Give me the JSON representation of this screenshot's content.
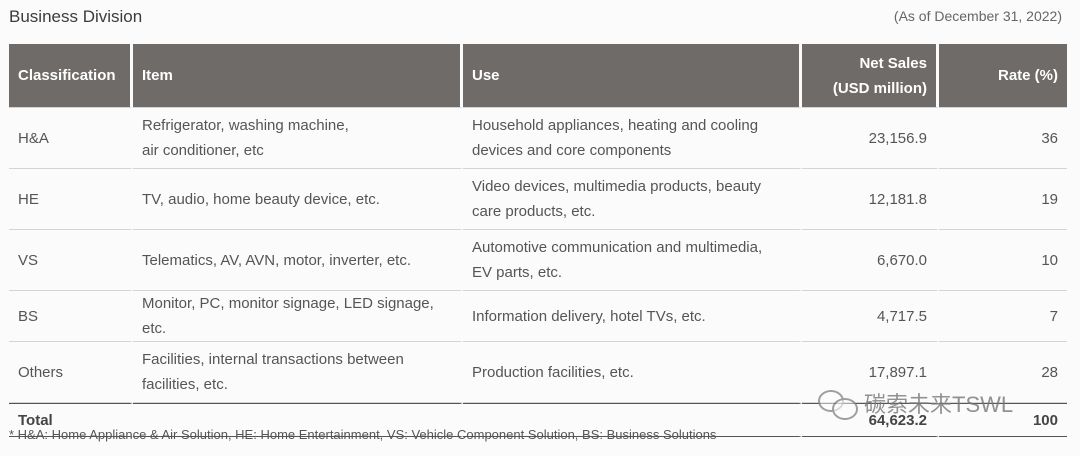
{
  "title": "Business Division",
  "as_of": "(As of December 31, 2022)",
  "table": {
    "headers": {
      "classification": "Classification",
      "item": "Item",
      "use": "Use",
      "net_sales_line1": "Net Sales",
      "net_sales_line2": "(USD million)",
      "rate": "Rate (%)"
    },
    "rows": [
      {
        "classification": "H&A",
        "item_line1": "Refrigerator, washing machine,",
        "item_line2": "air conditioner, etc",
        "use_line1": "Household appliances, heating and cooling",
        "use_line2": "devices and core components",
        "net_sales": "23,156.9",
        "rate": "36"
      },
      {
        "classification": "HE",
        "item_line1": "TV, audio, home beauty device, etc.",
        "item_line2": "",
        "use_line1": "Video devices, multimedia products, beauty",
        "use_line2": "care products, etc.",
        "net_sales": "12,181.8",
        "rate": "19"
      },
      {
        "classification": "VS",
        "item_line1": "Telematics, AV, AVN, motor, inverter, etc.",
        "item_line2": "",
        "use_line1": "Automotive communication and multimedia,",
        "use_line2": "EV parts, etc.",
        "net_sales": "6,670.0",
        "rate": "10"
      },
      {
        "classification": "BS",
        "item_line1": "Monitor, PC, monitor signage, LED signage, etc.",
        "item_line2": "",
        "use_line1": "Information delivery, hotel TVs, etc.",
        "use_line2": "",
        "net_sales": "4,717.5",
        "rate": "7"
      },
      {
        "classification": "Others",
        "item_line1": "Facilities, internal transactions between",
        "item_line2": "facilities, etc.",
        "use_line1": "Production facilities, etc.",
        "use_line2": "",
        "net_sales": "17,897.1",
        "rate": "28"
      }
    ],
    "total": {
      "label": "Total",
      "net_sales": "64,623.2",
      "rate": "100"
    }
  },
  "footnote": "* H&A: Home Appliance & Air Solution, HE: Home Entertainment, VS: Vehicle Component Solution, BS: Business Solutions",
  "watermark": {
    "text": "碳索未来TSWL",
    "icon": "chat-bubbles-icon"
  }
}
